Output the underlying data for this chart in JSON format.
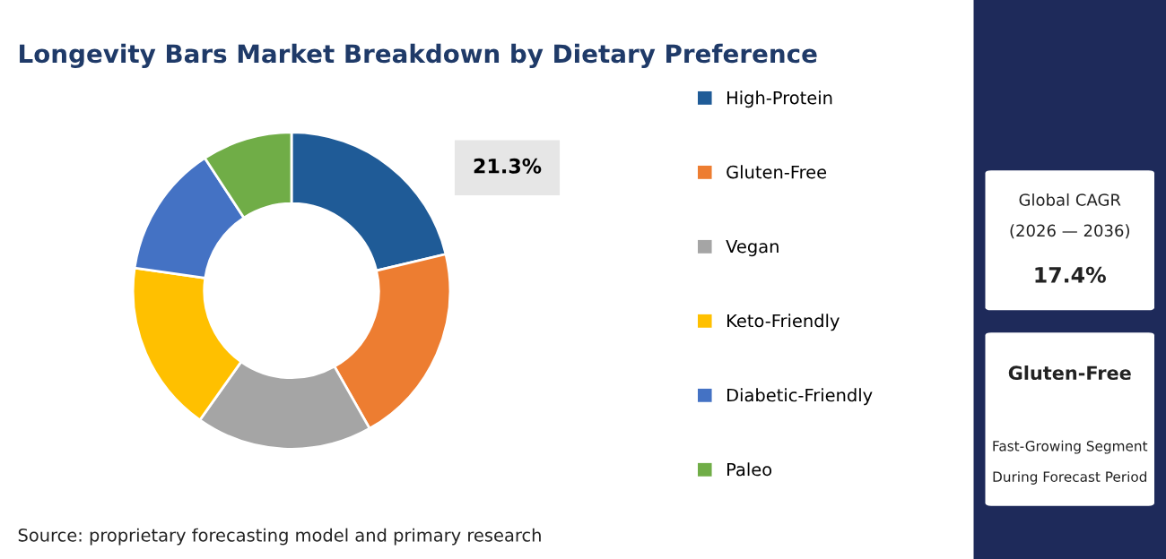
{
  "chart_data": {
    "type": "donut",
    "title": "Longevity Bars Market Breakdown by Dietary Preference",
    "categories": [
      "High-Protein",
      "Gluten-Free",
      "Vegan",
      "Keto-Friendly",
      "Diabetic-Friendly",
      "Paleo"
    ],
    "values": [
      21.3,
      20.5,
      18,
      17.5,
      13.5,
      9.2
    ],
    "colors": [
      "#1f5b97",
      "#ed7d31",
      "#a5a5a5",
      "#ffc000",
      "#4472c4",
      "#70ad47"
    ],
    "value_labels": [
      "21.3%",
      null,
      null,
      null,
      null,
      null
    ],
    "legend": "right",
    "annotations": [
      "Source: proprietary forecasting model and primary research",
      "Global CAGR",
      "(2026 — 2036)",
      "17.4%",
      "Gluten-Free",
      "Fast-Growing Segment",
      "During Forecast Period"
    ]
  }
}
